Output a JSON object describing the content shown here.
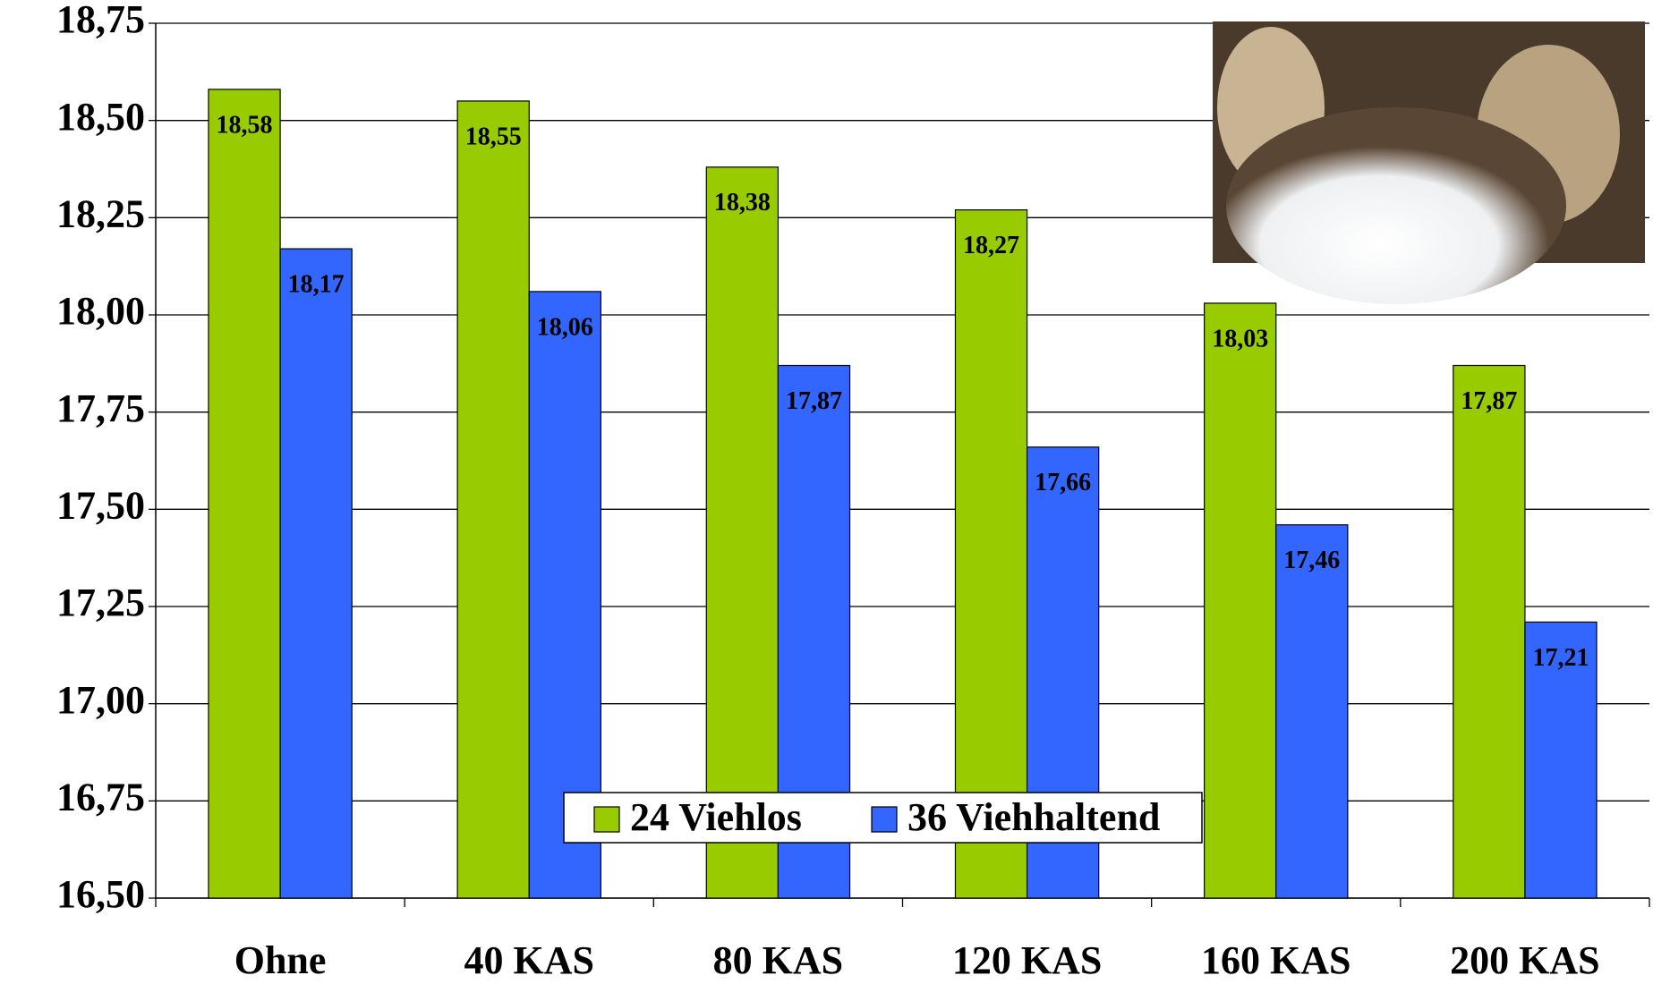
{
  "chart_data": {
    "type": "bar",
    "categories": [
      "Ohne",
      "40 KAS",
      "80 KAS",
      "120 KAS",
      "160 KAS",
      "200 KAS"
    ],
    "series": [
      {
        "name": "24 Viehlos",
        "color": "#99cc00",
        "values": [
          18.58,
          18.55,
          18.38,
          18.27,
          18.03,
          17.87
        ],
        "value_labels": [
          "18,58",
          "18,55",
          "18,38",
          "18,27",
          "18,03",
          "17,87"
        ]
      },
      {
        "name": "36 Viehhaltend",
        "color": "#3366ff",
        "values": [
          18.17,
          18.06,
          17.87,
          17.66,
          17.46,
          17.21
        ],
        "value_labels": [
          "18,17",
          "18,06",
          "17,87",
          "17,66",
          "17,46",
          "17,21"
        ]
      }
    ],
    "ylim": [
      16.5,
      18.75
    ],
    "yticks": [
      {
        "value": 16.5,
        "label": "16,50"
      },
      {
        "value": 16.75,
        "label": "16,75"
      },
      {
        "value": 17,
        "label": "17,00"
      },
      {
        "value": 17.25,
        "label": "17,25"
      },
      {
        "value": 17.5,
        "label": "17,50"
      },
      {
        "value": 17.75,
        "label": "17,75"
      },
      {
        "value": 18,
        "label": "18,00"
      },
      {
        "value": 18.25,
        "label": "18,25"
      },
      {
        "value": 18.5,
        "label": "18,50"
      },
      {
        "value": 18.75,
        "label": "18,75"
      }
    ],
    "grid": true
  }
}
